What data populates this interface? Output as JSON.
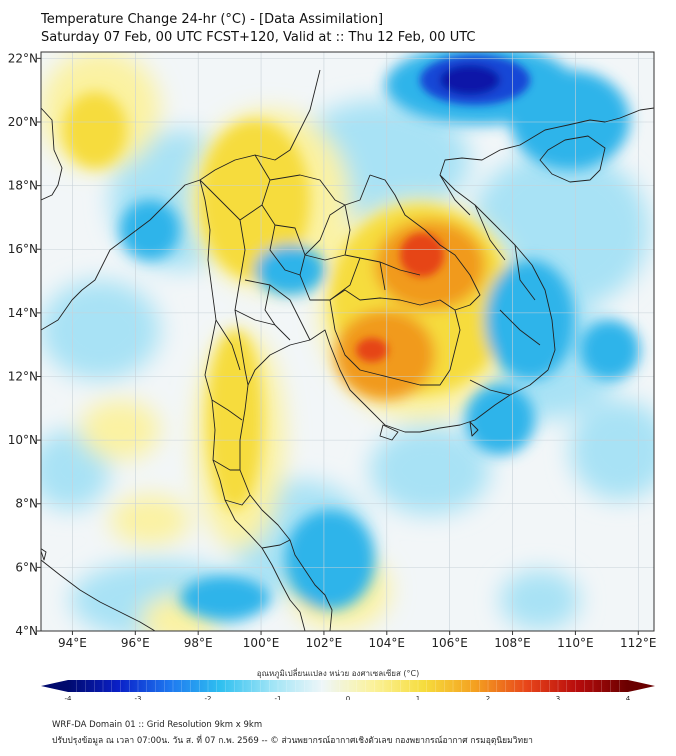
{
  "header": {
    "title_line1": "Temperature Change 24-hr (°C) - [Data Assimilation]",
    "title_line2": "Saturday 07 Feb, 00 UTC FCST+120, Valid at :: Thu 12 Feb, 00 UTC"
  },
  "map": {
    "lon_range": [
      93,
      112.5
    ],
    "lat_range": [
      4,
      22.2
    ],
    "x_ticks": [
      {
        "value": 94,
        "label": "94°E"
      },
      {
        "value": 96,
        "label": "96°E"
      },
      {
        "value": 98,
        "label": "98°E"
      },
      {
        "value": 100,
        "label": "100°E"
      },
      {
        "value": 102,
        "label": "102°E"
      },
      {
        "value": 104,
        "label": "104°E"
      },
      {
        "value": 106,
        "label": "106°E"
      },
      {
        "value": 108,
        "label": "108°E"
      },
      {
        "value": 110,
        "label": "110°E"
      },
      {
        "value": 112,
        "label": "112°E"
      }
    ],
    "y_ticks": [
      {
        "value": 22,
        "label": "22°N"
      },
      {
        "value": 20,
        "label": "20°N"
      },
      {
        "value": 18,
        "label": "18°N"
      },
      {
        "value": 16,
        "label": "16°N"
      },
      {
        "value": 14,
        "label": "14°N"
      },
      {
        "value": 12,
        "label": "12°N"
      },
      {
        "value": 10,
        "label": "10°N"
      },
      {
        "value": 8,
        "label": "8°N"
      },
      {
        "value": 6,
        "label": "6°N"
      },
      {
        "value": 4,
        "label": "4°N"
      }
    ],
    "colors": {
      "neutral": "#f2f6f8",
      "warm_light": "#fbf2a2",
      "warm": "#f6dc3c",
      "hot": "#f19a1a",
      "hottest": "#e64412",
      "cool_light": "#a8e2f5",
      "cool": "#2fb4ea",
      "cold": "#1446d6",
      "coldest": "#0a14a8",
      "land_line": "#222222",
      "grid": "#c8d2d8"
    }
  },
  "colorbar": {
    "title": "อุณหภูมิเปลี่ยนแปลง หน่วย องศาเซลเซียส (°C)",
    "min": -4,
    "max": 4,
    "tick_labels": [
      "-4",
      "-3",
      "-2",
      "-1",
      "0",
      "1",
      "2",
      "3",
      "4"
    ],
    "stops": [
      "#000a6e",
      "#0a20c8",
      "#1e78f0",
      "#2fc0f0",
      "#9fe4f6",
      "#eef6f8",
      "#fbf29a",
      "#f6dc3c",
      "#f4a020",
      "#e8461a",
      "#b80c0c",
      "#6a0000"
    ]
  },
  "footer": {
    "line1": "WRF-DA Domain 01 :: Grid Resolution 9km x 9km",
    "line2": "ปรับปรุงข้อมูล ณ เวลา 07:00น. วัน ส. ที่ 07 ก.พ. 2569 -- © ส่วนพยากรณ์อากาศเชิงตัวเลข กองพยากรณ์อากาศ กรมอุตุนิยมวิทยา"
  }
}
